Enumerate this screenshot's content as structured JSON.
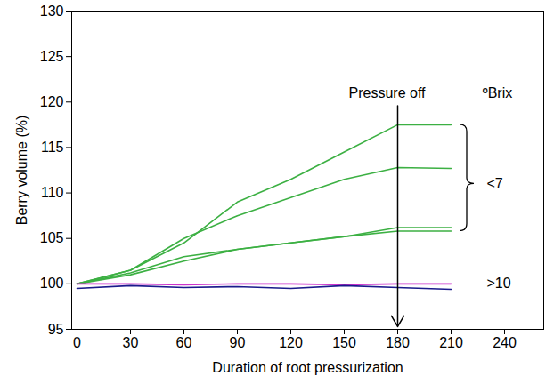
{
  "chart_data": {
    "type": "line",
    "x_label": "Duration of root pressurization",
    "y_label": "Berry volume (%)",
    "x": [
      0,
      30,
      60,
      90,
      120,
      150,
      180,
      210
    ],
    "xlim": [
      -3,
      262
    ],
    "xticks": [
      0,
      30,
      60,
      90,
      120,
      150,
      180,
      210,
      240
    ],
    "ylim": [
      95,
      130
    ],
    "yticks": [
      95,
      100,
      105,
      110,
      115,
      120,
      125,
      130
    ],
    "grid": false,
    "series": [
      {
        "color": "#3cb043",
        "values": [
          100,
          101.5,
          104.5,
          109,
          111.5,
          114.5,
          117.5,
          117.5
        ]
      },
      {
        "color": "#3cb043",
        "values": [
          100,
          101.5,
          105,
          107.5,
          109.5,
          111.5,
          112.8,
          112.7
        ]
      },
      {
        "color": "#3cb043",
        "values": [
          100,
          101.2,
          103,
          103.8,
          104.5,
          105.2,
          106.2,
          106.2
        ]
      },
      {
        "color": "#3cb043",
        "values": [
          100,
          101,
          102.5,
          103.8,
          104.5,
          105.2,
          105.8,
          105.8
        ]
      },
      {
        "color": "#cc33cc",
        "values": [
          100,
          100,
          99.9,
          100,
          100,
          99.9,
          100,
          100
        ]
      },
      {
        "color": "#1a1a8c",
        "values": [
          99.5,
          99.8,
          99.6,
          99.7,
          99.5,
          99.8,
          99.6,
          99.4
        ]
      }
    ],
    "annotations": [
      {
        "text": "Pressure off",
        "x": 180
      },
      {
        "text": "ºBrix"
      },
      {
        "text": "<7"
      },
      {
        "text": ">10"
      }
    ]
  }
}
